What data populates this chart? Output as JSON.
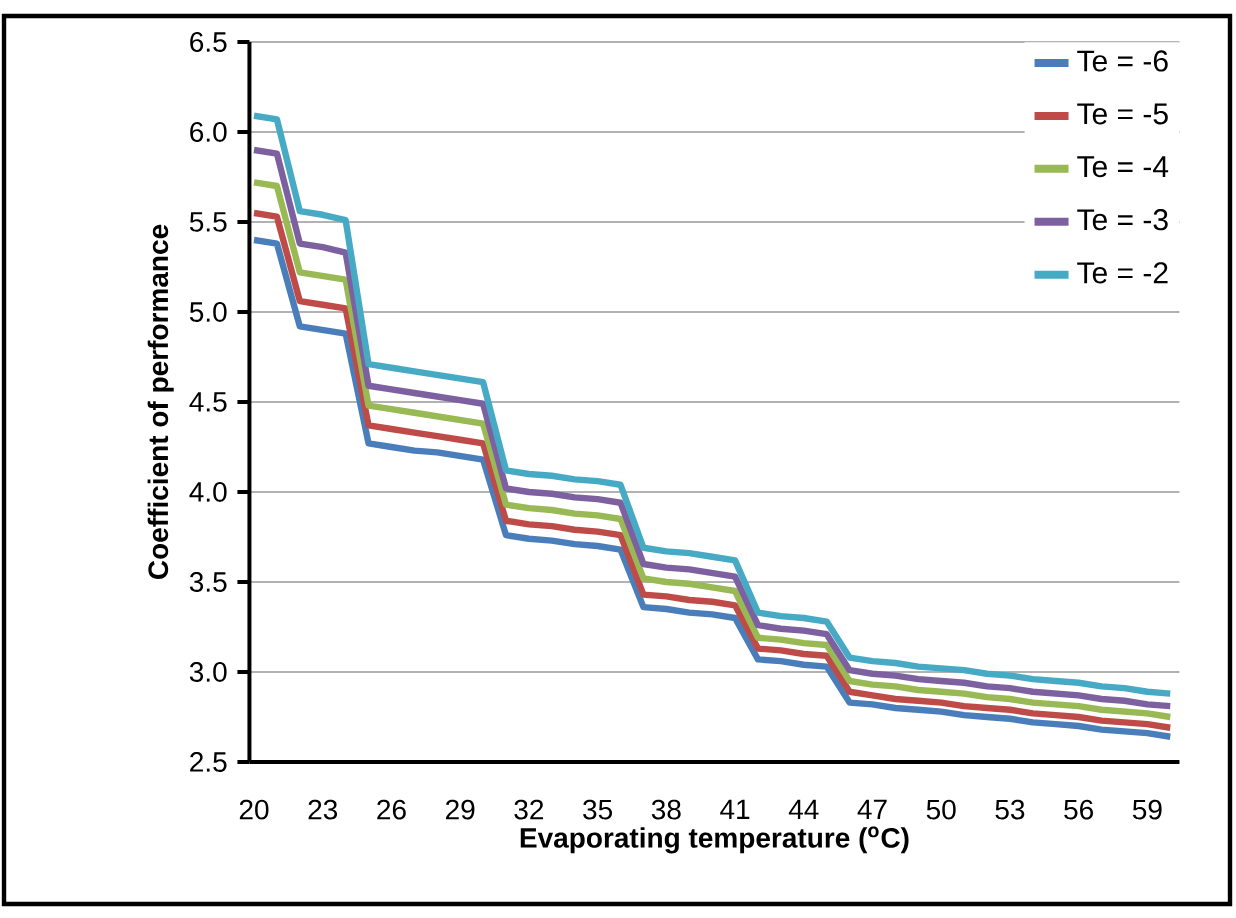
{
  "chart_data": {
    "type": "line",
    "xlabel": "Evaporating temperature ($^{o}$C)",
    "ylabel": "Coefficient of performance",
    "categories": [
      "20",
      null,
      null,
      "23",
      null,
      null,
      "26",
      null,
      null,
      "29",
      null,
      null,
      "32",
      null,
      null,
      "35",
      null,
      null,
      "38",
      null,
      null,
      "41",
      null,
      null,
      "44",
      null,
      null,
      "47",
      null,
      null,
      "50",
      null,
      null,
      "53",
      null,
      null,
      "56",
      null,
      null,
      "59",
      null
    ],
    "ylim": [
      2.5,
      6.5
    ],
    "yticks": [
      {
        "value": 2.5,
        "label": "2.5"
      },
      {
        "value": 3,
        "label": "3.0"
      },
      {
        "value": 3.5,
        "label": "3.5"
      },
      {
        "value": 4,
        "label": "4.0"
      },
      {
        "value": 4.5,
        "label": "4.5"
      },
      {
        "value": 5,
        "label": "5.0"
      },
      {
        "value": 5.5,
        "label": "5.5"
      },
      {
        "value": 6,
        "label": "6.0"
      },
      {
        "value": 6.5,
        "label": "6.5"
      }
    ],
    "grid": "y",
    "legend": "top right",
    "marker": "none",
    "line_style": "solid",
    "series": [
      {
        "name": "Te = -6",
        "color": "#4a7ebb",
        "values": [
          5.4,
          5.38,
          4.92,
          4.9,
          4.88,
          4.27,
          4.25,
          4.23,
          4.22,
          4.2,
          4.18,
          3.76,
          3.74,
          3.73,
          3.71,
          3.7,
          3.68,
          3.36,
          3.35,
          3.33,
          3.32,
          3.3,
          3.07,
          3.06,
          3.04,
          3.03,
          2.83,
          2.82,
          2.8,
          2.79,
          2.78,
          2.76,
          2.75,
          2.74,
          2.72,
          2.71,
          2.7,
          2.68,
          2.67,
          2.66,
          2.64
        ]
      },
      {
        "name": "Te = -5",
        "color": "#be4b48",
        "values": [
          5.55,
          5.53,
          5.06,
          5.04,
          5.02,
          4.37,
          4.35,
          4.33,
          4.31,
          4.29,
          4.27,
          3.84,
          3.82,
          3.81,
          3.79,
          3.78,
          3.76,
          3.43,
          3.42,
          3.4,
          3.39,
          3.37,
          3.13,
          3.12,
          3.1,
          3.09,
          2.89,
          2.87,
          2.85,
          2.84,
          2.83,
          2.81,
          2.8,
          2.79,
          2.77,
          2.76,
          2.75,
          2.73,
          2.72,
          2.71,
          2.69
        ]
      },
      {
        "name": "Te = -4",
        "color": "#98b954",
        "values": [
          5.72,
          5.7,
          5.22,
          5.2,
          5.18,
          4.48,
          4.46,
          4.44,
          4.42,
          4.4,
          4.38,
          3.93,
          3.91,
          3.9,
          3.88,
          3.87,
          3.85,
          3.52,
          3.5,
          3.49,
          3.47,
          3.45,
          3.19,
          3.18,
          3.16,
          3.15,
          2.95,
          2.93,
          2.92,
          2.9,
          2.89,
          2.88,
          2.86,
          2.85,
          2.83,
          2.82,
          2.81,
          2.79,
          2.78,
          2.77,
          2.75
        ]
      },
      {
        "name": "Te = -3",
        "color": "#7d60a0",
        "values": [
          5.9,
          5.88,
          5.38,
          5.36,
          5.33,
          4.59,
          4.57,
          4.55,
          4.53,
          4.51,
          4.49,
          4.02,
          4.0,
          3.99,
          3.97,
          3.96,
          3.94,
          3.6,
          3.58,
          3.57,
          3.55,
          3.53,
          3.26,
          3.24,
          3.23,
          3.21,
          3.01,
          2.99,
          2.98,
          2.96,
          2.95,
          2.94,
          2.92,
          2.91,
          2.89,
          2.88,
          2.87,
          2.85,
          2.84,
          2.82,
          2.81
        ]
      },
      {
        "name": "Te = -2",
        "color": "#46aac5",
        "values": [
          6.09,
          6.07,
          5.56,
          5.54,
          5.51,
          4.71,
          4.69,
          4.67,
          4.65,
          4.63,
          4.61,
          4.12,
          4.1,
          4.09,
          4.07,
          4.06,
          4.04,
          3.69,
          3.67,
          3.66,
          3.64,
          3.62,
          3.33,
          3.31,
          3.3,
          3.28,
          3.08,
          3.06,
          3.05,
          3.03,
          3.02,
          3.01,
          2.99,
          2.98,
          2.96,
          2.95,
          2.94,
          2.92,
          2.91,
          2.89,
          2.88
        ]
      }
    ]
  }
}
